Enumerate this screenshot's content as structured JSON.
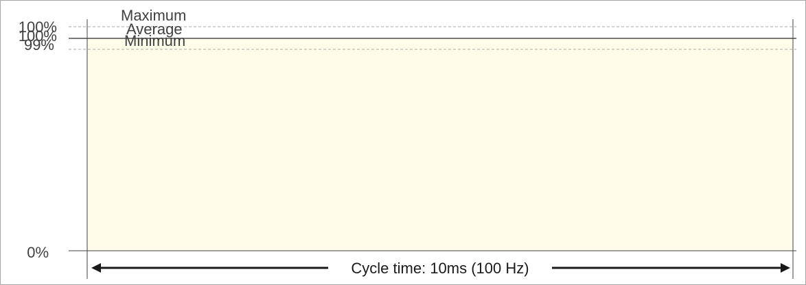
{
  "chart_data": {
    "type": "area",
    "title": "",
    "xlabel": "",
    "ylabel": "",
    "y_unit": "%",
    "ylim": [
      0,
      100
    ],
    "grid": false,
    "y_ticks": [
      {
        "label": "100%",
        "value": 100
      },
      {
        "label": "100%",
        "value": 99.5
      },
      {
        "label": "99%",
        "value": 99
      }
    ],
    "zero_tick": {
      "label": "0%",
      "value": 0
    },
    "reference_lines": [
      {
        "name": "Maximum",
        "label": "Maximum",
        "value": 100,
        "style": "dashed"
      },
      {
        "name": "Average",
        "label": "Average",
        "value": 99.5,
        "style": "solid"
      },
      {
        "name": "Minimum",
        "label": "Minimum",
        "value": 99,
        "style": "dashed"
      }
    ],
    "series": [
      {
        "values": [
          99.5,
          99.5,
          99.5,
          99.5,
          99.5,
          99.5,
          99.5,
          99.5,
          99.5,
          99.5,
          99.5,
          99.5
        ]
      }
    ],
    "cycle": {
      "label": "Cycle time: 10ms (100 Hz)"
    },
    "colors": {
      "fill": "#fffdea",
      "line": "#2b2b2b",
      "dashed": "#a6a6a6",
      "axis": "#404040",
      "text": "#404040"
    }
  }
}
